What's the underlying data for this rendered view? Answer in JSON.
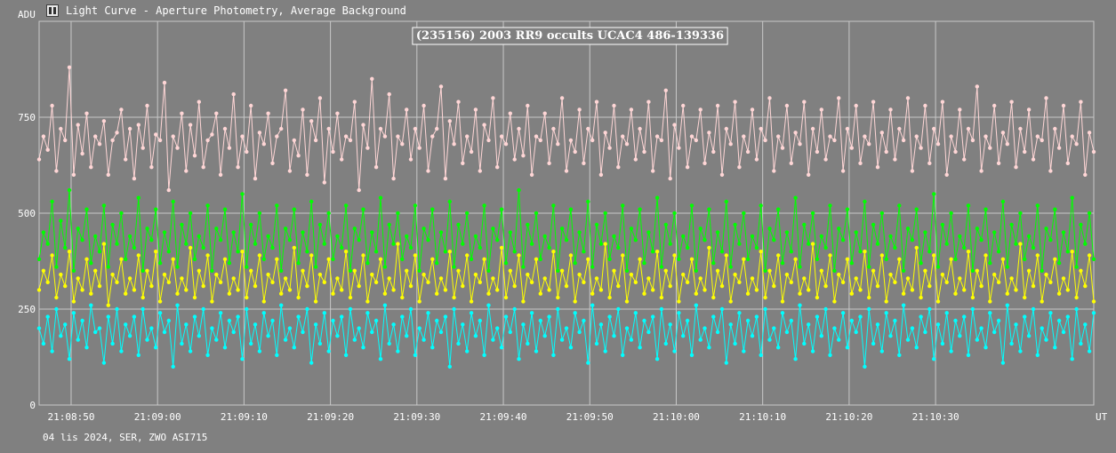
{
  "window": {
    "title": "Light Curve - Aperture Photometry, Average Background",
    "icon": "light-curve-app-icon"
  },
  "footer": {
    "caption": "04 lis 2024, SER, ZWO ASI715"
  },
  "colors": {
    "background": "#808080",
    "grid": "#c8c8c8",
    "text": "#ffffff",
    "series_pink": "#ffd6d6",
    "series_green": "#00ff00",
    "series_yellow": "#ffff00",
    "series_cyan": "#00ffff"
  },
  "chart_data": {
    "type": "line",
    "title": "(235156) 2003 RR9 occults UCAC4 486-139336",
    "ylabel": "ADU",
    "xlabel": "UT",
    "ylim": [
      0,
      1000
    ],
    "xlim": [
      "21:08:46.3",
      "21:10:48.3"
    ],
    "y_ticks": [
      0,
      250,
      500,
      750
    ],
    "x_ticks": [
      "21:08:50",
      "21:09:00",
      "21:09:10",
      "21:09:20",
      "21:09:30",
      "21:09:40",
      "21:09:50",
      "21:10:00",
      "21:10:10",
      "21:10:20",
      "21:10:30"
    ],
    "grid": true,
    "legend": "none",
    "markers": true,
    "sampling_note": "dense series sampled approximately every ~0.5 s",
    "series": [
      {
        "color": "#ffd6d6",
        "x_start": "21:08:46.3",
        "x_step_seconds": 0.5,
        "values": [
          640,
          700,
          665,
          780,
          610,
          720,
          690,
          880,
          600,
          730,
          655,
          760,
          620,
          700,
          680,
          740,
          600,
          690,
          710,
          770,
          640,
          720,
          590,
          730,
          670,
          780,
          620,
          705,
          690,
          840,
          560,
          700,
          670,
          760,
          610,
          730,
          650,
          790,
          620,
          690,
          705,
          760,
          600,
          720,
          670,
          810,
          620,
          700,
          660,
          780,
          590,
          710,
          680,
          760,
          630,
          700,
          720,
          820,
          610,
          690,
          650,
          770,
          600,
          740,
          690,
          800,
          580,
          720,
          660,
          760,
          640,
          700,
          690,
          790,
          560,
          730,
          670,
          850,
          620,
          720,
          700,
          810,
          590,
          700,
          680,
          770,
          640,
          720,
          670,
          780,
          610,
          700,
          720,
          830,
          590,
          740,
          680,
          790,
          630,
          700,
          660,
          770,
          610,
          730,
          690,
          800,
          620,
          700,
          680,
          760,
          640,
          720,
          650,
          780,
          600,
          700,
          690,
          760,
          630,
          720,
          680,
          800,
          610,
          690,
          660,
          770,
          630,
          720,
          690,
          790,
          600,
          710,
          670,
          780,
          620,
          700,
          680,
          770,
          640,
          720,
          660,
          790,
          610,
          700,
          690,
          820,
          590,
          730,
          670,
          780,
          620,
          700,
          690,
          770,
          630,
          710,
          660,
          780,
          600,
          720,
          680,
          790,
          620,
          700,
          660,
          770,
          640,
          720,
          690,
          800,
          610,
          700,
          670,
          780,
          630,
          710,
          680,
          790,
          600,
          720,
          660,
          770,
          640,
          700,
          690,
          800,
          610,
          720,
          670,
          780,
          630,
          700,
          680,
          790,
          620,
          710,
          660,
          770,
          640,
          720,
          690,
          800,
          610,
          700,
          670,
          780,
          630,
          720,
          680,
          790,
          600,
          700,
          660,
          770,
          640,
          720,
          690,
          830,
          610,
          700,
          670,
          780,
          630,
          710,
          680,
          790,
          620,
          720,
          660,
          770,
          640,
          700,
          690,
          800,
          610,
          720,
          670,
          780,
          630,
          700,
          680,
          790,
          600,
          710,
          660,
          770,
          640,
          720,
          690,
          800,
          620,
          700,
          670,
          880
        ]
      },
      {
        "color": "#00ff00",
        "x_start": "21:08:46.3",
        "x_step_seconds": 0.5,
        "values": [
          380,
          450,
          420,
          530,
          360,
          480,
          410,
          560,
          350,
          460,
          430,
          510,
          370,
          440,
          400,
          520,
          360,
          470,
          420,
          500,
          380,
          440,
          410,
          540,
          350,
          460,
          430,
          510,
          370,
          450,
          400,
          530,
          360,
          470,
          420,
          500,
          380,
          440,
          410,
          520,
          350,
          460,
          430,
          510,
          370,
          450,
          400,
          550,
          360,
          470,
          420,
          500,
          380,
          440,
          410,
          520,
          350,
          460,
          430,
          510,
          370,
          450,
          400,
          530,
          360,
          470,
          420,
          500,
          380,
          440,
          410,
          520,
          350,
          460,
          430,
          510,
          370,
          450,
          400,
          540,
          360,
          470,
          420,
          500,
          380,
          440,
          410,
          520,
          350,
          460,
          430,
          510,
          370,
          450,
          400,
          530,
          360,
          470,
          420,
          500,
          380,
          440,
          410,
          520,
          350,
          460,
          430,
          510,
          370,
          450,
          400,
          560,
          360,
          470,
          420,
          500,
          380,
          440,
          410,
          520,
          350,
          460,
          430,
          510,
          370,
          450,
          400,
          530,
          360,
          470,
          420,
          500,
          380,
          440,
          410,
          520,
          350,
          460,
          430,
          510,
          370,
          450,
          400,
          540,
          360,
          470,
          420,
          500,
          380,
          440,
          410,
          520,
          350,
          460,
          430,
          510,
          370,
          450,
          400,
          530,
          360,
          470,
          420,
          500,
          380,
          440,
          410,
          520,
          350,
          460,
          430,
          510,
          370,
          450,
          400,
          540,
          360,
          470,
          420,
          500,
          380,
          440,
          410,
          520,
          350,
          460,
          430,
          510,
          370,
          450,
          400,
          530,
          360,
          470,
          420,
          500,
          380,
          440,
          410,
          520,
          350,
          460,
          430,
          510,
          370,
          450,
          400,
          550,
          360,
          470,
          420,
          500,
          380,
          440,
          410,
          520,
          350,
          460,
          430,
          510,
          370,
          450,
          400,
          530,
          360,
          470,
          420,
          500,
          380,
          440,
          410,
          520,
          350,
          460,
          430,
          510,
          370,
          450,
          400,
          540,
          360,
          470,
          420,
          500,
          380,
          440,
          410,
          520,
          350,
          460,
          430,
          510
        ]
      },
      {
        "color": "#ffff00",
        "x_start": "21:08:46.3",
        "x_step_seconds": 0.5,
        "values": [
          300,
          350,
          320,
          390,
          280,
          340,
          310,
          400,
          270,
          330,
          300,
          380,
          290,
          350,
          310,
          420,
          260,
          340,
          320,
          380,
          290,
          330,
          300,
          390,
          280,
          350,
          310,
          400,
          270,
          340,
          320,
          380,
          290,
          330,
          300,
          410,
          280,
          350,
          310,
          390,
          270,
          340,
          320,
          380,
          290,
          330,
          300,
          400,
          280,
          350,
          310,
          390,
          270,
          340,
          320,
          380,
          290,
          330,
          300,
          410,
          280,
          350,
          310,
          390,
          270,
          340,
          320,
          380,
          290,
          330,
          300,
          400,
          280,
          350,
          310,
          390,
          270,
          340,
          320,
          380,
          290,
          330,
          300,
          420,
          280,
          350,
          310,
          390,
          270,
          340,
          320,
          380,
          290,
          330,
          300,
          400,
          280,
          350,
          310,
          390,
          270,
          340,
          320,
          380,
          290,
          330,
          300,
          410,
          280,
          350,
          310,
          390,
          270,
          340,
          320,
          380,
          290,
          330,
          300,
          400,
          280,
          350,
          310,
          390,
          270,
          340,
          320,
          380,
          290,
          330,
          300,
          420,
          280,
          350,
          310,
          390,
          270,
          340,
          320,
          380,
          290,
          330,
          300,
          400,
          280,
          350,
          310,
          390,
          270,
          340,
          320,
          380,
          290,
          330,
          300,
          410,
          280,
          350,
          310,
          390,
          270,
          340,
          320,
          380,
          290,
          330,
          300,
          400,
          280,
          350,
          310,
          390,
          270,
          340,
          320,
          380,
          290,
          330,
          300,
          420,
          280,
          350,
          310,
          390,
          270,
          340,
          320,
          380,
          290,
          330,
          300,
          400,
          280,
          350,
          310,
          390,
          270,
          340,
          320,
          380,
          290,
          330,
          300,
          410,
          280,
          350,
          310,
          390,
          270,
          340,
          320,
          380,
          290,
          330,
          300,
          400,
          280,
          350,
          310,
          390,
          270,
          340,
          320,
          380,
          290,
          330,
          300,
          420,
          280,
          350,
          310,
          390,
          270,
          340,
          320,
          380,
          290,
          330,
          300,
          400,
          280,
          350,
          310,
          390,
          270,
          340,
          320,
          380,
          290,
          330
        ]
      },
      {
        "color": "#00ffff",
        "x_start": "21:08:46.3",
        "x_step_seconds": 0.5,
        "values": [
          200,
          160,
          230,
          140,
          250,
          180,
          210,
          120,
          240,
          170,
          220,
          150,
          260,
          190,
          200,
          110,
          230,
          160,
          250,
          140,
          210,
          180,
          230,
          130,
          250,
          170,
          200,
          150,
          240,
          190,
          220,
          100,
          260,
          160,
          210,
          140,
          230,
          180,
          250,
          130,
          200,
          170,
          240,
          150,
          220,
          190,
          230,
          120,
          250,
          160,
          210,
          140,
          240,
          180,
          220,
          130,
          260,
          170,
          200,
          150,
          230,
          190,
          250,
          110,
          210,
          160,
          240,
          140,
          220,
          180,
          230,
          130,
          250,
          170,
          200,
          150,
          240,
          190,
          220,
          120,
          260,
          160,
          210,
          140,
          230,
          180,
          250,
          130,
          200,
          170,
          240,
          150,
          220,
          190,
          230,
          100,
          250,
          160,
          210,
          140,
          240,
          180,
          220,
          130,
          260,
          170,
          200,
          150,
          230,
          190,
          250,
          120,
          210,
          160,
          240,
          140,
          220,
          180,
          230,
          130,
          250,
          170,
          200,
          150,
          240,
          190,
          220,
          110,
          260,
          160,
          210,
          140,
          230,
          180,
          250,
          130,
          200,
          170,
          240,
          150,
          220,
          190,
          230,
          120,
          250,
          160,
          210,
          140,
          240,
          180,
          220,
          130,
          260,
          170,
          200,
          150,
          230,
          190,
          250,
          110,
          210,
          160,
          240,
          140,
          220,
          180,
          230,
          130,
          250,
          170,
          200,
          150,
          240,
          190,
          220,
          120,
          260,
          160,
          210,
          140,
          230,
          180,
          250,
          130,
          200,
          170,
          240,
          150,
          220,
          190,
          230,
          100,
          250,
          160,
          210,
          140,
          240,
          180,
          220,
          130,
          260,
          170,
          200,
          150,
          230,
          190,
          250,
          120,
          210,
          160,
          240,
          140,
          220,
          180,
          230,
          130,
          250,
          170,
          200,
          150,
          240,
          190,
          220,
          110,
          260,
          160,
          210,
          140,
          230,
          180,
          250,
          130,
          200,
          170,
          240,
          150,
          220,
          190,
          230,
          120,
          250,
          160,
          210,
          140,
          240,
          180,
          220,
          130,
          260,
          170,
          200,
          210
        ]
      }
    ]
  }
}
